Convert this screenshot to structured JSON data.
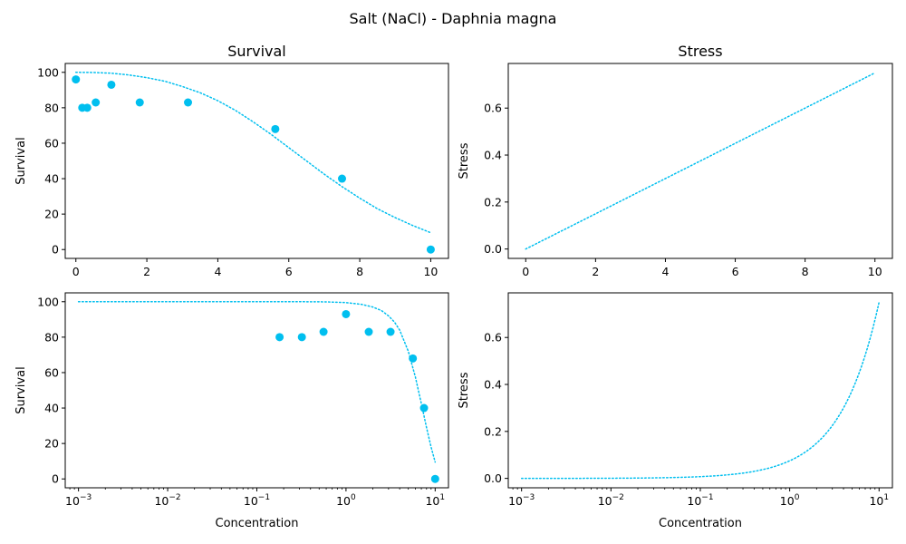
{
  "figure": {
    "suptitle": "Salt (NaCl) - Daphnia magna",
    "color": "#00bfef",
    "axes_color": "#000000"
  },
  "chart_data": [
    {
      "id": "survival-linear",
      "type": "scatter",
      "title": "Survival",
      "xlabel": "",
      "ylabel": "Survival",
      "xscale": "linear",
      "xlim": [
        -0.3,
        10.5
      ],
      "ylim": [
        -5,
        105
      ],
      "xticks": [
        0,
        2,
        4,
        6,
        8,
        10
      ],
      "xtick_labels": [
        "0",
        "2",
        "4",
        "6",
        "8",
        "10"
      ],
      "yticks": [
        0,
        20,
        40,
        60,
        80,
        100
      ],
      "ytick_labels": [
        "0",
        "20",
        "40",
        "60",
        "80",
        "100"
      ],
      "grid": false,
      "points": {
        "x": [
          0,
          0.18,
          0.32,
          0.56,
          1.0,
          1.8,
          3.16,
          5.62,
          7.5,
          10
        ],
        "y": [
          96,
          80,
          80,
          83,
          93,
          83,
          83,
          68,
          40,
          0
        ]
      },
      "curve": {
        "style": "dotted",
        "x": [
          0,
          0.5,
          1,
          1.5,
          2,
          2.5,
          3,
          3.5,
          4,
          4.5,
          5,
          5.5,
          6,
          6.5,
          7,
          7.5,
          8,
          8.5,
          9,
          9.5,
          10
        ],
        "y": [
          100,
          99.9,
          99.5,
          98.5,
          97,
          95,
          92,
          88.5,
          84,
          78.5,
          72,
          65,
          57.5,
          50,
          42.5,
          35.5,
          29,
          23,
          18,
          13.5,
          9.5
        ]
      }
    },
    {
      "id": "stress-linear",
      "type": "line",
      "title": "Stress",
      "xlabel": "",
      "ylabel": "Stress",
      "xscale": "linear",
      "xlim": [
        -0.5,
        10.5
      ],
      "ylim": [
        -0.04,
        0.79
      ],
      "xticks": [
        0,
        2,
        4,
        6,
        8,
        10
      ],
      "xtick_labels": [
        "0",
        "2",
        "4",
        "6",
        "8",
        "10"
      ],
      "yticks": [
        0,
        0.2,
        0.4,
        0.6
      ],
      "ytick_labels": [
        "0.0",
        "0.2",
        "0.4",
        "0.6"
      ],
      "grid": false,
      "curve": {
        "style": "dotted",
        "x": [
          0,
          10
        ],
        "y": [
          0,
          0.75
        ]
      }
    },
    {
      "id": "survival-log",
      "type": "scatter",
      "title": "",
      "xlabel": "Concentration",
      "ylabel": "Survival",
      "xscale": "log",
      "xlim": [
        0.00071,
        14.1
      ],
      "ylim": [
        -5,
        105
      ],
      "xticks": [
        0.001,
        0.01,
        0.1,
        1,
        10
      ],
      "xtick_labels": [
        "10",
        "10",
        "10",
        "10",
        "10"
      ],
      "xtick_exponents": [
        "−3",
        "−2",
        "−1",
        "0",
        "1"
      ],
      "yticks": [
        0,
        20,
        40,
        60,
        80,
        100
      ],
      "ytick_labels": [
        "0",
        "20",
        "40",
        "60",
        "80",
        "100"
      ],
      "grid": false,
      "points": {
        "x": [
          0.18,
          0.32,
          0.56,
          1.0,
          1.8,
          3.16,
          5.62,
          7.5,
          10
        ],
        "y": [
          80,
          80,
          83,
          93,
          83,
          83,
          68,
          40,
          0
        ]
      },
      "curve": {
        "style": "dotted",
        "x": [
          0.001,
          0.01,
          0.1,
          0.3,
          0.6,
          1,
          1.5,
          2,
          2.5,
          3,
          3.5,
          4,
          5,
          6,
          7,
          8,
          9,
          10
        ],
        "y": [
          100,
          100,
          100,
          100,
          99.9,
          99.5,
          98.5,
          97,
          95,
          92,
          88.5,
          84,
          72,
          57.5,
          42.5,
          29,
          18,
          9.5
        ]
      }
    },
    {
      "id": "stress-log",
      "type": "line",
      "title": "",
      "xlabel": "Concentration",
      "ylabel": "Stress",
      "xscale": "log",
      "xlim": [
        0.00071,
        14.1
      ],
      "ylim": [
        -0.04,
        0.79
      ],
      "xticks": [
        0.001,
        0.01,
        0.1,
        1,
        10
      ],
      "xtick_labels": [
        "10",
        "10",
        "10",
        "10",
        "10"
      ],
      "xtick_exponents": [
        "−3",
        "−2",
        "−1",
        "0",
        "1"
      ],
      "yticks": [
        0,
        0.2,
        0.4,
        0.6
      ],
      "ytick_labels": [
        "0.0",
        "0.2",
        "0.4",
        "0.6"
      ],
      "grid": false,
      "curve": {
        "style": "dotted",
        "x": [
          0.001,
          10
        ],
        "y": [
          0,
          0.75
        ]
      }
    }
  ]
}
